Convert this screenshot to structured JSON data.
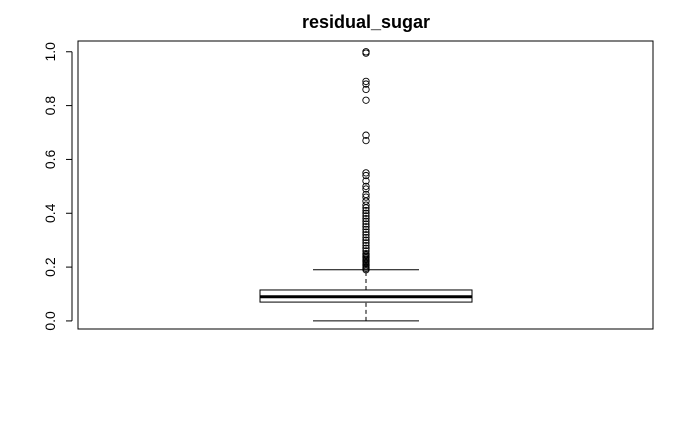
{
  "chart_data": {
    "type": "boxplot",
    "title": "residual_sugar",
    "xlabel": "",
    "ylabel": "",
    "ylim": [
      -0.03,
      1.04
    ],
    "yticks": [
      0.0,
      0.2,
      0.4,
      0.6,
      0.8,
      1.0
    ],
    "ytick_labels": [
      "0.0",
      "0.2",
      "0.4",
      "0.6",
      "0.8",
      "1.0"
    ],
    "box": {
      "whisker_low": 0.0,
      "q1": 0.07,
      "median": 0.09,
      "q3": 0.115,
      "whisker_high": 0.19
    },
    "outliers": [
      0.19,
      0.195,
      0.2,
      0.205,
      0.21,
      0.215,
      0.22,
      0.225,
      0.23,
      0.235,
      0.24,
      0.245,
      0.25,
      0.26,
      0.27,
      0.28,
      0.29,
      0.3,
      0.31,
      0.32,
      0.33,
      0.34,
      0.35,
      0.36,
      0.37,
      0.38,
      0.39,
      0.4,
      0.41,
      0.42,
      0.43,
      0.445,
      0.46,
      0.47,
      0.49,
      0.5,
      0.52,
      0.54,
      0.55,
      0.67,
      0.69,
      0.82,
      0.86,
      0.88,
      0.89,
      0.995,
      1.0
    ],
    "colors": {
      "stroke": "#000000",
      "background": "#ffffff"
    }
  }
}
